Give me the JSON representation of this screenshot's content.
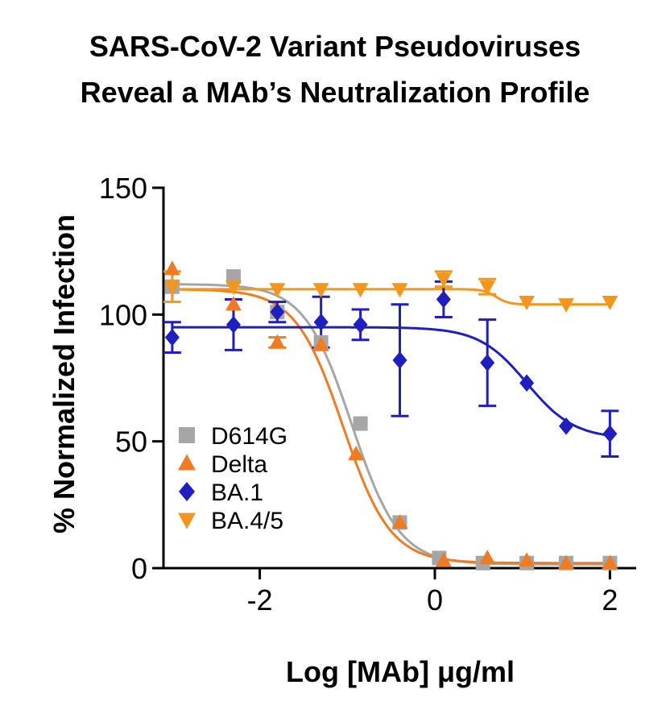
{
  "title_line1": "SARS-CoV-2 Variant Pseudoviruses",
  "title_line2": "Reveal a MAb’s Neutralization Profile",
  "chart_data": {
    "type": "scatter",
    "title": "SARS-CoV-2 Variant Pseudoviruses Reveal a MAb’s Neutralization Profile",
    "xlabel": "Log [MAb] μg/ml",
    "ylabel": "% Normalized Infection",
    "xlim": [
      -3.1,
      2.3
    ],
    "ylim": [
      0,
      150
    ],
    "x_ticks": [
      -2,
      0,
      2
    ],
    "y_ticks": [
      0,
      50,
      100,
      150
    ],
    "grid": false,
    "legend_position": "bottom-left",
    "series": [
      {
        "name": "D614G",
        "color": "#a6a6a6",
        "marker": "square",
        "x": [
          -3.0,
          -2.3,
          -1.8,
          -1.3,
          -0.85,
          -0.4,
          0.05,
          0.55,
          1.05,
          1.5,
          2.0
        ],
        "y": [
          111,
          115,
          101,
          89,
          57,
          18,
          4,
          2,
          2,
          2,
          2
        ],
        "fit": {
          "top": 112,
          "bottom": 1.5,
          "log_ic50": -0.95,
          "hill": 1.6
        }
      },
      {
        "name": "Delta",
        "color": "#f07b22",
        "marker": "triangle-up",
        "x": [
          -3.0,
          -2.3,
          -1.8,
          -1.3,
          -0.9,
          -0.4,
          0.1,
          0.6,
          1.05,
          1.5,
          2.0
        ],
        "y": [
          118,
          104,
          89,
          88,
          45,
          18,
          3,
          4,
          3,
          2,
          2
        ],
        "error": [
          0,
          0,
          2,
          0,
          0,
          0,
          0,
          0,
          0,
          0,
          0
        ],
        "fit": {
          "top": 110,
          "bottom": 2,
          "log_ic50": -1.05,
          "hill": 1.6
        }
      },
      {
        "name": "BA.1",
        "color": "#1f1fbf",
        "marker": "diamond",
        "x": [
          -3.0,
          -2.3,
          -1.8,
          -1.3,
          -0.85,
          -0.4,
          0.1,
          0.6,
          1.05,
          1.5,
          2.0
        ],
        "y": [
          91,
          96,
          101,
          97,
          96,
          82,
          106,
          81,
          73,
          56,
          53
        ],
        "error": [
          6,
          10,
          4,
          10,
          6,
          22,
          7,
          17,
          0,
          0,
          9
        ],
        "fit": {
          "top": 95,
          "bottom": 51,
          "log_ic50": 1.05,
          "hill": 1.6
        }
      },
      {
        "name": "BA.4/5",
        "color": "#f3961e",
        "marker": "triangle-down",
        "x": [
          -3.0,
          -2.3,
          -1.8,
          -1.3,
          -0.85,
          -0.4,
          0.1,
          0.6,
          1.05,
          1.5,
          2.0
        ],
        "y": [
          111,
          111,
          110,
          110,
          110,
          110,
          114,
          111,
          105,
          104,
          105
        ],
        "error": [
          6,
          0,
          0,
          0,
          0,
          0,
          3,
          3,
          0,
          0,
          0
        ],
        "fit": {
          "top": 110,
          "bottom": 104,
          "log_ic50": 0.7,
          "hill": 6
        }
      }
    ]
  }
}
